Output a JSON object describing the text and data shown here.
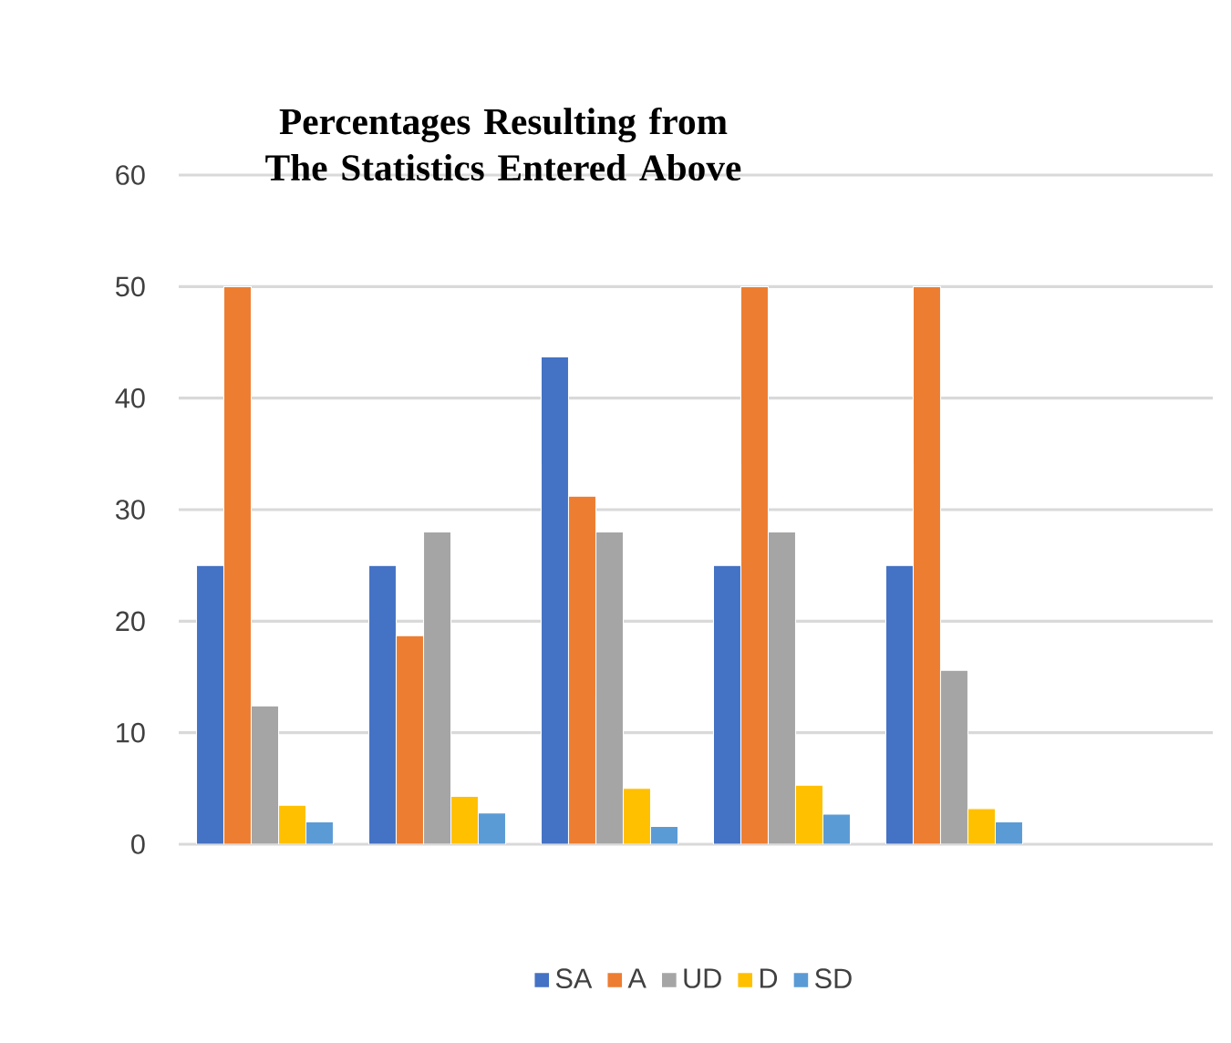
{
  "chart_data": {
    "type": "bar",
    "title": "Percentages Resulting from The Statistics Entered Above",
    "categories": [
      null,
      null,
      null,
      null,
      null,
      null
    ],
    "series": [
      {
        "name": "SA",
        "color": "#4472c4",
        "values": [
          25,
          25,
          43.7,
          25,
          25,
          null
        ]
      },
      {
        "name": "A",
        "color": "#ed7d31",
        "values": [
          50,
          18.7,
          31.2,
          50,
          50,
          null
        ]
      },
      {
        "name": "UD",
        "color": "#a5a5a5",
        "values": [
          12.4,
          28,
          28,
          28,
          15.6,
          null
        ]
      },
      {
        "name": "D",
        "color": "#ffc000",
        "values": [
          3.5,
          4.3,
          5.0,
          5.3,
          3.2,
          null
        ]
      },
      {
        "name": "SD",
        "color": "#5b9bd5",
        "values": [
          2.0,
          2.8,
          1.6,
          2.7,
          2.0,
          null
        ]
      }
    ],
    "ylim": [
      0,
      60
    ],
    "yticks": [
      0,
      10,
      20,
      30,
      40,
      50,
      60
    ],
    "grid": "y",
    "legend": "bottom",
    "tick_labels": "y"
  }
}
